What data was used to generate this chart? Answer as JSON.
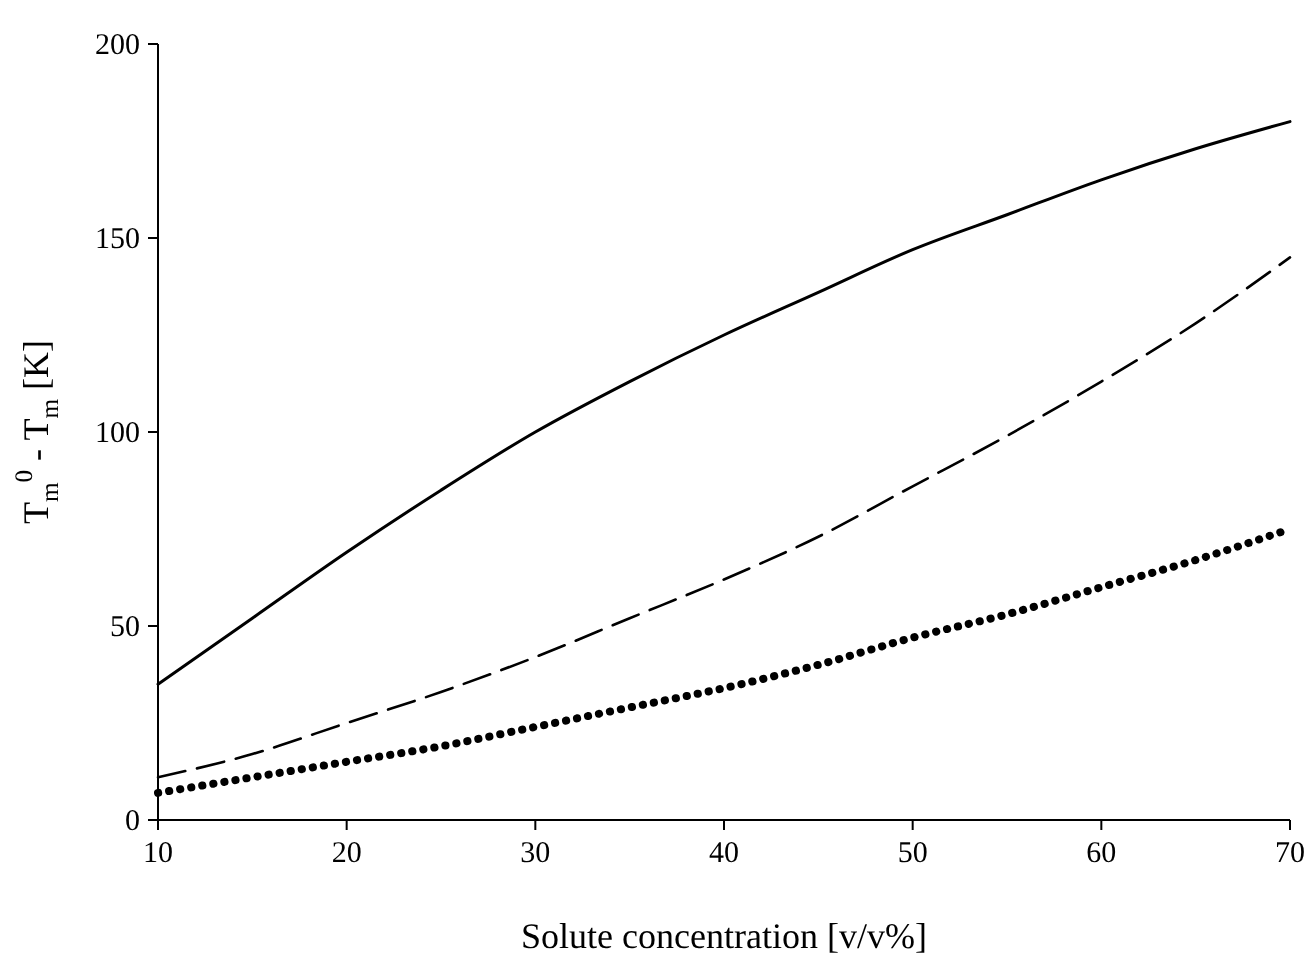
{
  "chart_data": {
    "type": "line",
    "xlabel": "Solute concentration [v/v%]",
    "ylabel": "T$_{m}$$^{0}$ - T$_{m}$ [K]",
    "x": [
      10,
      15,
      20,
      25,
      30,
      35,
      40,
      45,
      50,
      55,
      60,
      65,
      70
    ],
    "xlim": [
      10,
      70
    ],
    "xticks": [
      10,
      20,
      30,
      40,
      50,
      60,
      70
    ],
    "ylim": [
      0,
      200
    ],
    "yticks": [
      0,
      50,
      100,
      150,
      200
    ],
    "series": [
      {
        "color": "#000000",
        "line_style": "solid",
        "values": [
          35,
          52,
          69,
          85,
          100,
          113,
          125,
          136,
          147,
          156,
          165,
          173,
          180
        ]
      },
      {
        "color": "#000000",
        "line_style": "dashed",
        "values": [
          11,
          17,
          25,
          33,
          42,
          52,
          62,
          73,
          86,
          99,
          113,
          128,
          145
        ]
      },
      {
        "color": "#000000",
        "line_style": "dotted",
        "values": [
          7,
          11,
          15,
          19,
          24,
          29,
          34,
          40,
          47,
          53,
          60,
          67,
          75
        ]
      }
    ]
  }
}
